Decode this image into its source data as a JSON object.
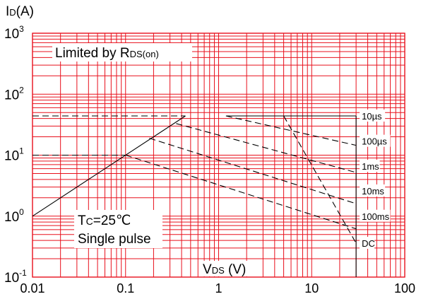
{
  "chart_data": {
    "type": "line",
    "title": "",
    "ylabel": {
      "main": "I",
      "sub": "D",
      "unit": "(A)"
    },
    "xlabel": {
      "main": "V",
      "sub": "DS",
      "unit": " (V)"
    },
    "x_scale": "log",
    "y_scale": "log",
    "xlim": [
      0.01,
      100
    ],
    "ylim": [
      0.1,
      1000
    ],
    "grid": true,
    "x_ticks": [
      {
        "value": 0.01,
        "label": "0.01"
      },
      {
        "value": 0.1,
        "label": "0.1"
      },
      {
        "value": 1,
        "label": "1"
      },
      {
        "value": 10,
        "label": "10"
      },
      {
        "value": 100,
        "label": "100"
      }
    ],
    "y_ticks": [
      {
        "value": 1000,
        "base": "10",
        "exp": "3"
      },
      {
        "value": 100,
        "base": "10",
        "exp": "2"
      },
      {
        "value": 10,
        "base": "10",
        "exp": "1"
      },
      {
        "value": 1,
        "base": "10",
        "exp": "0"
      },
      {
        "value": 0.1,
        "base": "10",
        "exp": "-1"
      }
    ],
    "vds_max": 30,
    "rds_limit": {
      "label_main": "Limited by R",
      "label_sub": "DS(on)",
      "points": [
        [
          0.01,
          1.0
        ],
        [
          0.44,
          44
        ]
      ]
    },
    "series": [
      {
        "name": "10µs",
        "points": [
          [
            1.2,
            44
          ],
          [
            30,
            44
          ]
        ],
        "style": "solid",
        "label_y": 44
      },
      {
        "name": "100µs",
        "points": [
          [
            1.2,
            44
          ],
          [
            30,
            14.5
          ]
        ],
        "style": "dashed",
        "label_y": 17
      },
      {
        "name": "1ms",
        "points": [
          [
            0.35,
            33
          ],
          [
            30,
            5.2
          ]
        ],
        "style": "dashed",
        "label_y": 6.6
      },
      {
        "name": "10ms",
        "points": [
          [
            0.18,
            19
          ],
          [
            30,
            1.6
          ]
        ],
        "style": "dashed",
        "label_y": 2.6
      },
      {
        "name": "100ms",
        "points": [
          [
            0.1,
            10
          ],
          [
            30,
            0.62
          ]
        ],
        "style": "dashed",
        "label_y": 1.0
      },
      {
        "name": "DC",
        "points": [
          [
            5.0,
            44
          ],
          [
            30,
            0.36
          ]
        ],
        "style": "dashed",
        "label_y": 0.36
      }
    ],
    "current_limit_dashes": [
      {
        "points": [
          [
            0.01,
            44
          ],
          [
            0.44,
            44
          ]
        ]
      },
      {
        "points": [
          [
            0.01,
            10
          ],
          [
            0.1,
            10
          ]
        ]
      }
    ],
    "annotations": {
      "condition_line1_main": "T",
      "condition_line1_sub": "C",
      "condition_line1_rest": "=25℃",
      "condition_line2": "Single pulse"
    },
    "colors": {
      "grid": "#e8101c",
      "line": "#000000"
    }
  }
}
